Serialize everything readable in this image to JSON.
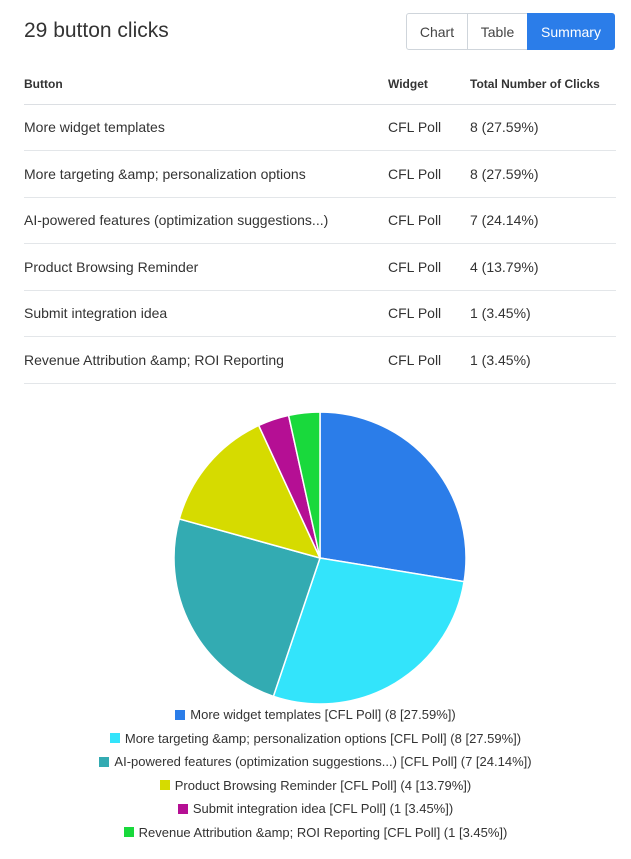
{
  "header": {
    "title": "29 button clicks"
  },
  "tabs": [
    {
      "label": "Chart",
      "active": false
    },
    {
      "label": "Table",
      "active": false
    },
    {
      "label": "Summary",
      "active": true
    }
  ],
  "table": {
    "columns": [
      "Button",
      "Widget",
      "Total Number of Clicks"
    ],
    "rows": [
      {
        "button": "More widget templates",
        "widget": "CFL Poll",
        "clicks": "8 (27.59%)"
      },
      {
        "button": "More targeting &amp; personalization options",
        "widget": "CFL Poll",
        "clicks": "8 (27.59%)"
      },
      {
        "button": "AI-powered features (optimization suggestions...)",
        "widget": "CFL Poll",
        "clicks": "7 (24.14%)"
      },
      {
        "button": "Product Browsing Reminder",
        "widget": "CFL Poll",
        "clicks": "4 (13.79%)"
      },
      {
        "button": "Submit integration idea",
        "widget": "CFL Poll",
        "clicks": "1 (3.45%)"
      },
      {
        "button": "Revenue Attribution &amp; ROI Reporting",
        "widget": "CFL Poll",
        "clicks": "1 (3.45%)"
      }
    ]
  },
  "chart_data": {
    "type": "pie",
    "title": "",
    "legend_position": "bottom",
    "slices": [
      {
        "label": "More widget templates [CFL Poll] (8 [27.59%])",
        "value": 8,
        "color": "#2b7de9"
      },
      {
        "label": "More targeting &amp; personalization options [CFL Poll] (8 [27.59%])",
        "value": 8,
        "color": "#33e4fb"
      },
      {
        "label": "AI-powered features (optimization suggestions...) [CFL Poll] (7 [24.14%])",
        "value": 7,
        "color": "#33abb2"
      },
      {
        "label": "Product Browsing Reminder [CFL Poll] (4 [13.79%])",
        "value": 4,
        "color": "#d6db00"
      },
      {
        "label": "Submit integration idea [CFL Poll] (1 [3.45%])",
        "value": 1,
        "color": "#b50f94"
      },
      {
        "label": "Revenue Attribution &amp; ROI Reporting [CFL Poll] (1 [3.45%])",
        "value": 1,
        "color": "#19d93c"
      }
    ]
  }
}
